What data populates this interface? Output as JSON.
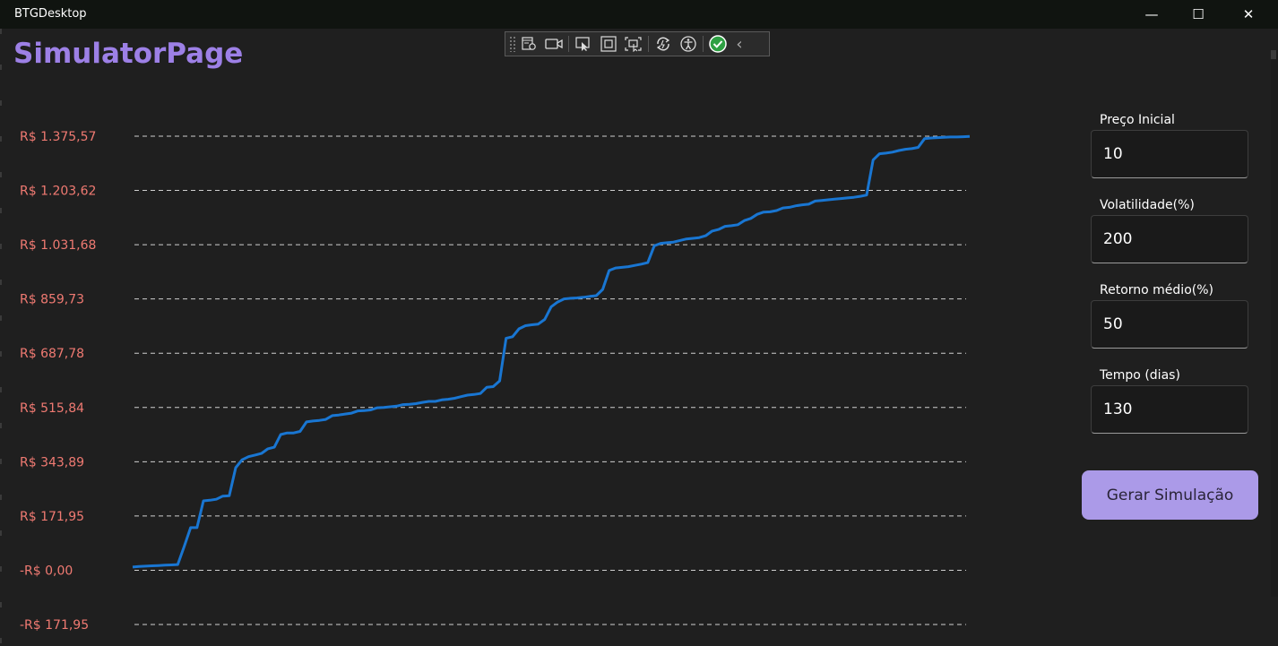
{
  "window": {
    "title": "BTGDesktop",
    "minimize_glyph": "—",
    "maximize_glyph": "☐",
    "close_glyph": "✕"
  },
  "page": {
    "title": "SimulatorPage"
  },
  "devtools": {
    "icons": [
      "live-visual-tree-icon",
      "video-icon",
      "select-element-icon",
      "display-layout-adorners-icon",
      "track-focus-icon",
      "hot-reload-icon",
      "accessibility-icon",
      "check-ok-icon",
      "collapse-chevron-icon"
    ],
    "check_color": "#2ea043",
    "collapse_glyph": "‹"
  },
  "form": {
    "preco_inicial": {
      "label": "Preço Inicial",
      "value": "10"
    },
    "volatilidade": {
      "label": "Volatilidade(%)",
      "value": "200"
    },
    "retorno_medio": {
      "label": "Retorno médio(%)",
      "value": "50"
    },
    "tempo": {
      "label": "Tempo (dias)",
      "value": "130"
    },
    "button_label": "Gerar Simulação"
  },
  "colors": {
    "accent": "#9d80e6",
    "button": "#ab9ae8",
    "line": "#1976d2",
    "tick_label": "#f07a72",
    "background": "#1f1f1f"
  },
  "chart_data": {
    "type": "line",
    "title": "",
    "xlabel": "",
    "ylabel": "",
    "grid": true,
    "grid_style": "dashed",
    "ylim": [
      -171.95,
      1375.57
    ],
    "y_ticks": [
      1375.57,
      1203.62,
      1031.68,
      859.73,
      687.78,
      515.84,
      343.89,
      171.95,
      0.0,
      -171.95
    ],
    "y_tick_labels": [
      "R$ 1.375,57",
      "R$ 1.203,62",
      "R$ 1.031,68",
      "R$ 859,73",
      "R$ 687,78",
      "R$ 515,84",
      "R$ 343,89",
      "R$ 171,95",
      "-R$ 0,00",
      "-R$ 171,95"
    ],
    "x": [
      0,
      1,
      2,
      3,
      4,
      5,
      6,
      7,
      8,
      9,
      10,
      11,
      12,
      13,
      14,
      15,
      16,
      17,
      18,
      19,
      20,
      21,
      22,
      23,
      24,
      25,
      26,
      27,
      28,
      29,
      30,
      31,
      32,
      33,
      34,
      35,
      36,
      37,
      38,
      39,
      40,
      41,
      42,
      43,
      44,
      45,
      46,
      47,
      48,
      49,
      50,
      51,
      52,
      53,
      54,
      55,
      56,
      57,
      58,
      59,
      60,
      61,
      62,
      63,
      64,
      65,
      66,
      67,
      68,
      69,
      70,
      71,
      72,
      73,
      74,
      75,
      76,
      77,
      78,
      79,
      80,
      81,
      82,
      83,
      84,
      85,
      86,
      87,
      88,
      89,
      90,
      91,
      92,
      93,
      94,
      95,
      96,
      97,
      98,
      99,
      100,
      101,
      102,
      103,
      104,
      105,
      106,
      107,
      108,
      109,
      110,
      111,
      112,
      113,
      114,
      115,
      116,
      117,
      118,
      119,
      120,
      121,
      122,
      123,
      124,
      125,
      126,
      127,
      128,
      129,
      130
    ],
    "series": [
      {
        "values": [
          10,
          12,
          13,
          14,
          15,
          16,
          17,
          18,
          75,
          135,
          135,
          220,
          222,
          225,
          235,
          236,
          325,
          350,
          360,
          365,
          370,
          385,
          390,
          430,
          435,
          435,
          440,
          470,
          473,
          475,
          478,
          490,
          492,
          495,
          498,
          505,
          506,
          508,
          515,
          516,
          518,
          520,
          525,
          526,
          528,
          532,
          535,
          535,
          540,
          542,
          545,
          550,
          555,
          557,
          560,
          580,
          582,
          600,
          735,
          740,
          765,
          775,
          778,
          780,
          795,
          835,
          850,
          860,
          862,
          863,
          865,
          868,
          870,
          890,
          950,
          958,
          960,
          962,
          966,
          970,
          975,
          1028,
          1036,
          1038,
          1040,
          1045,
          1050,
          1052,
          1054,
          1060,
          1075,
          1080,
          1090,
          1092,
          1095,
          1108,
          1115,
          1128,
          1135,
          1136,
          1140,
          1148,
          1150,
          1155,
          1158,
          1160,
          1170,
          1172,
          1174,
          1176,
          1178,
          1180,
          1182,
          1185,
          1189,
          1300,
          1320,
          1322,
          1325,
          1330,
          1334,
          1336,
          1340,
          1368,
          1370,
          1371,
          1372,
          1373,
          1373,
          1374,
          1375
        ]
      }
    ]
  }
}
